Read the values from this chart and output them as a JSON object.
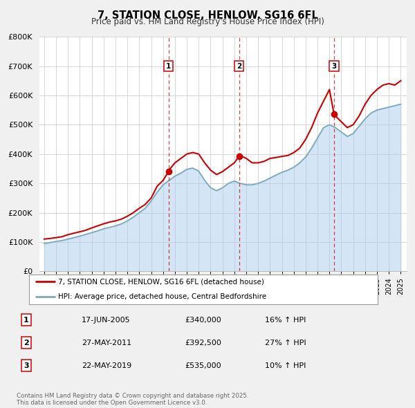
{
  "title": "7, STATION CLOSE, HENLOW, SG16 6FL",
  "subtitle": "Price paid vs. HM Land Registry's House Price Index (HPI)",
  "bg_color": "#f0f0f0",
  "plot_bg_color": "#ffffff",
  "grid_color": "#d0d0d0",
  "ylim": [
    0,
    800000
  ],
  "yticks": [
    0,
    100000,
    200000,
    300000,
    400000,
    500000,
    600000,
    700000,
    800000
  ],
  "ytick_labels": [
    "£0",
    "£100K",
    "£200K",
    "£300K",
    "£400K",
    "£500K",
    "£600K",
    "£700K",
    "£800K"
  ],
  "xlim_start": 1994.6,
  "xlim_end": 2025.5,
  "xticks": [
    1995,
    1996,
    1997,
    1998,
    1999,
    2000,
    2001,
    2002,
    2003,
    2004,
    2005,
    2006,
    2007,
    2008,
    2009,
    2010,
    2011,
    2012,
    2013,
    2014,
    2015,
    2016,
    2017,
    2018,
    2019,
    2020,
    2021,
    2022,
    2023,
    2024,
    2025
  ],
  "sale_color": "#cc0000",
  "hpi_color": "#aaccee",
  "hpi_fill_alpha": 0.5,
  "sale_dot_color": "#cc0000",
  "vline_color": "#cc0000",
  "marker_color": "#cc0000",
  "legend_label_sale": "7, STATION CLOSE, HENLOW, SG16 6FL (detached house)",
  "legend_label_hpi": "HPI: Average price, detached house, Central Bedfordshire",
  "transactions": [
    {
      "label": "1",
      "date": 2005.46,
      "price": 340000,
      "text_date": "17-JUN-2005",
      "text_price": "£340,000",
      "text_hpi": "16% ↑ HPI"
    },
    {
      "label": "2",
      "date": 2011.4,
      "price": 392500,
      "text_date": "27-MAY-2011",
      "text_price": "£392,500",
      "text_hpi": "27% ↑ HPI"
    },
    {
      "label": "3",
      "date": 2019.39,
      "price": 535000,
      "text_date": "22-MAY-2019",
      "text_price": "£535,000",
      "text_hpi": "10% ↑ HPI"
    }
  ],
  "footnote": "Contains HM Land Registry data © Crown copyright and database right 2025.\nThis data is licensed under the Open Government Licence v3.0.",
  "sale_line": {
    "x": [
      1995.0,
      1995.5,
      1996.0,
      1996.5,
      1997.0,
      1997.5,
      1998.0,
      1998.5,
      1999.0,
      1999.5,
      2000.0,
      2000.5,
      2001.0,
      2001.5,
      2002.0,
      2002.5,
      2003.0,
      2003.5,
      2004.0,
      2004.5,
      2005.0,
      2005.46,
      2005.5,
      2006.0,
      2006.5,
      2007.0,
      2007.5,
      2008.0,
      2008.5,
      2009.0,
      2009.5,
      2010.0,
      2010.5,
      2011.0,
      2011.4,
      2011.5,
      2012.0,
      2012.5,
      2013.0,
      2013.5,
      2014.0,
      2014.5,
      2015.0,
      2015.5,
      2016.0,
      2016.5,
      2017.0,
      2017.5,
      2018.0,
      2018.5,
      2019.0,
      2019.39,
      2019.5,
      2020.0,
      2020.5,
      2021.0,
      2021.5,
      2022.0,
      2022.5,
      2023.0,
      2023.5,
      2024.0,
      2024.5,
      2025.0
    ],
    "y": [
      110000,
      112000,
      115000,
      118000,
      125000,
      130000,
      135000,
      140000,
      148000,
      155000,
      162000,
      168000,
      172000,
      178000,
      188000,
      200000,
      215000,
      228000,
      250000,
      290000,
      310000,
      340000,
      345000,
      370000,
      385000,
      400000,
      405000,
      400000,
      370000,
      345000,
      330000,
      340000,
      355000,
      370000,
      392500,
      395000,
      385000,
      370000,
      370000,
      375000,
      385000,
      388000,
      392000,
      395000,
      405000,
      420000,
      450000,
      490000,
      540000,
      580000,
      620000,
      535000,
      530000,
      510000,
      490000,
      500000,
      530000,
      570000,
      600000,
      620000,
      635000,
      640000,
      635000,
      650000
    ]
  },
  "hpi_line": {
    "x": [
      1995.0,
      1995.5,
      1996.0,
      1996.5,
      1997.0,
      1997.5,
      1998.0,
      1998.5,
      1999.0,
      1999.5,
      2000.0,
      2000.5,
      2001.0,
      2001.5,
      2002.0,
      2002.5,
      2003.0,
      2003.5,
      2004.0,
      2004.5,
      2005.0,
      2005.5,
      2006.0,
      2006.5,
      2007.0,
      2007.5,
      2008.0,
      2008.5,
      2009.0,
      2009.5,
      2010.0,
      2010.5,
      2011.0,
      2011.5,
      2012.0,
      2012.5,
      2013.0,
      2013.5,
      2014.0,
      2014.5,
      2015.0,
      2015.5,
      2016.0,
      2016.5,
      2017.0,
      2017.5,
      2018.0,
      2018.5,
      2019.0,
      2019.5,
      2020.0,
      2020.5,
      2021.0,
      2021.5,
      2022.0,
      2022.5,
      2023.0,
      2023.5,
      2024.0,
      2024.5,
      2025.0
    ],
    "y": [
      95000,
      98000,
      102000,
      105000,
      110000,
      115000,
      120000,
      126000,
      132000,
      138000,
      145000,
      150000,
      155000,
      162000,
      172000,
      185000,
      200000,
      215000,
      240000,
      270000,
      295000,
      310000,
      325000,
      335000,
      348000,
      352000,
      342000,
      310000,
      285000,
      275000,
      285000,
      300000,
      308000,
      300000,
      295000,
      295000,
      300000,
      308000,
      318000,
      328000,
      338000,
      345000,
      355000,
      370000,
      390000,
      420000,
      455000,
      490000,
      500000,
      490000,
      475000,
      460000,
      470000,
      495000,
      520000,
      540000,
      550000,
      555000,
      560000,
      565000,
      570000
    ]
  }
}
